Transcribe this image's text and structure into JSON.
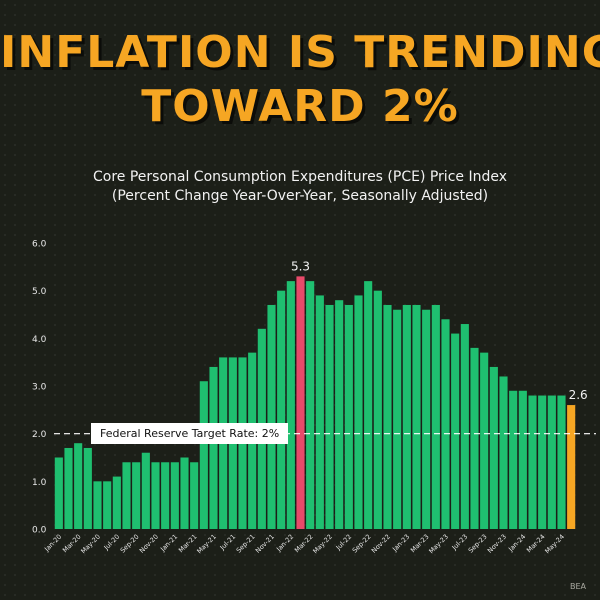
{
  "headline": {
    "line1": "INFLATION IS TRENDING",
    "line2": "TOWARD 2%"
  },
  "subtitle": {
    "line1": "Core Personal Consumption Expenditures (PCE) Price Index",
    "line2": "(Percent Change Year-Over-Year, Seasonally Adjusted)"
  },
  "source": "BEA",
  "chart_data": {
    "type": "bar",
    "ylim": [
      0,
      6
    ],
    "yticks": [
      "0.0",
      "1.0",
      "2.0",
      "3.0",
      "4.0",
      "5.0",
      "6.0"
    ],
    "grid": false,
    "reference_line": {
      "value": 2.0,
      "label": "Federal Reserve Target Rate: 2%"
    },
    "categories": [
      "Jan-20",
      "Feb-20",
      "Mar-20",
      "Apr-20",
      "May-20",
      "Jun-20",
      "Jul-20",
      "Aug-20",
      "Sep-20",
      "Oct-20",
      "Nov-20",
      "Dec-20",
      "Jan-21",
      "Feb-21",
      "Mar-21",
      "Apr-21",
      "May-21",
      "Jun-21",
      "Jul-21",
      "Aug-21",
      "Sep-21",
      "Oct-21",
      "Nov-21",
      "Dec-21",
      "Jan-22",
      "Feb-22",
      "Mar-22",
      "Apr-22",
      "May-22",
      "Jun-22",
      "Jul-22",
      "Aug-22",
      "Sep-22",
      "Oct-22",
      "Nov-22",
      "Dec-22",
      "Jan-23",
      "Feb-23",
      "Mar-23",
      "Apr-23",
      "May-23",
      "Jun-23",
      "Jul-23",
      "Aug-23",
      "Sep-23",
      "Oct-23",
      "Nov-23",
      "Dec-23",
      "Jan-24",
      "Feb-24",
      "Mar-24",
      "Apr-24",
      "May-24",
      "Jun-24"
    ],
    "values": [
      1.5,
      1.7,
      1.8,
      1.7,
      1.0,
      1.0,
      1.1,
      1.4,
      1.4,
      1.6,
      1.4,
      1.4,
      1.4,
      1.5,
      1.4,
      3.1,
      3.4,
      3.6,
      3.6,
      3.6,
      3.7,
      4.2,
      4.7,
      5.0,
      5.2,
      5.3,
      5.2,
      4.9,
      4.7,
      4.8,
      4.7,
      4.9,
      5.2,
      5.0,
      4.7,
      4.6,
      4.7,
      4.7,
      4.6,
      4.7,
      4.4,
      4.1,
      4.3,
      3.8,
      3.7,
      3.4,
      3.2,
      2.9,
      2.9,
      2.8,
      2.8,
      2.8,
      2.8,
      2.6
    ],
    "xtick_labels": [
      "Jan-20",
      "Mar-20",
      "May-20",
      "Jul-20",
      "Sep-20",
      "Nov-20",
      "Jan-21",
      "Mar-21",
      "May-21",
      "Jul-21",
      "Sep-21",
      "Nov-21",
      "Jan-22",
      "Mar-22",
      "May-22",
      "Jul-22",
      "Sep-22",
      "Nov-22",
      "Jan-23",
      "Mar-23",
      "May-23",
      "Jul-23",
      "Sep-23",
      "Nov-23",
      "Jan-24",
      "Mar-24",
      "May-24"
    ],
    "highlights": [
      {
        "index": 25,
        "label": "5.3",
        "color": "#e84a6a"
      },
      {
        "index": 53,
        "label": "2.6",
        "color": "#f6a623"
      }
    ],
    "colors": {
      "bar": "#1fbf70",
      "axis_text": "#e8e8e8",
      "reference": "#ffffff"
    }
  }
}
